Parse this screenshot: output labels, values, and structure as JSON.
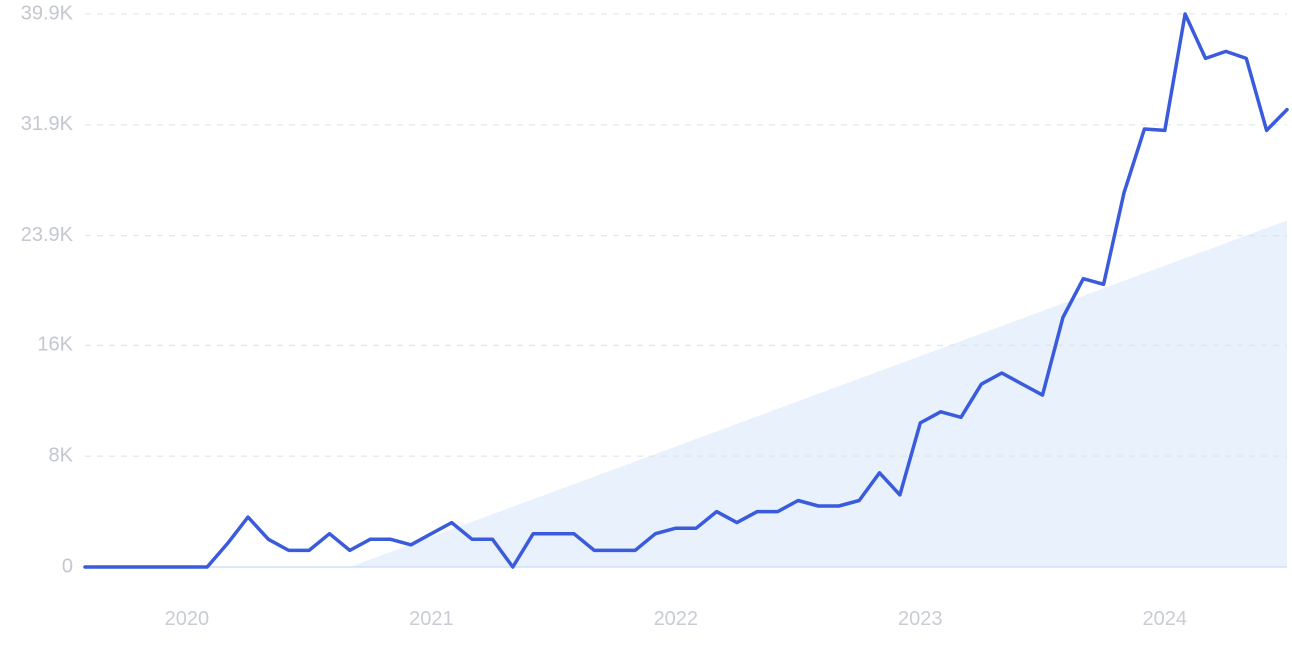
{
  "chart_data": {
    "type": "line",
    "title": "",
    "xlabel": "",
    "ylabel": "",
    "colors": {
      "line": "#3a5bdc",
      "grid": "#dde1e8",
      "baseline": "#cfe0f5",
      "trend_fill": "#e6f0fc",
      "tick_text": "#c4c7cf"
    },
    "grid": true,
    "legend": "none",
    "x_range": [
      "2019-08",
      "2024-07"
    ],
    "ylim": [
      0,
      39900
    ],
    "y_ticks": [
      {
        "value": 0,
        "label": "0"
      },
      {
        "value": 8000,
        "label": "8K"
      },
      {
        "value": 16000,
        "label": "16K"
      },
      {
        "value": 23900,
        "label": "23.9K"
      },
      {
        "value": 31900,
        "label": "31.9K"
      },
      {
        "value": 39900,
        "label": "39.9K"
      }
    ],
    "x_ticks": [
      {
        "date": "2020-01",
        "label": "2020"
      },
      {
        "date": "2021-01",
        "label": "2021"
      },
      {
        "date": "2022-01",
        "label": "2022"
      },
      {
        "date": "2023-01",
        "label": "2023"
      },
      {
        "date": "2024-01",
        "label": "2024"
      }
    ],
    "series": [
      {
        "x": [
          "2019-08",
          "2019-09",
          "2019-10",
          "2019-11",
          "2019-12",
          "2020-01",
          "2020-02",
          "2020-03",
          "2020-04",
          "2020-05",
          "2020-06",
          "2020-07",
          "2020-08",
          "2020-09",
          "2020-10",
          "2020-11",
          "2020-12",
          "2021-01",
          "2021-02",
          "2021-03",
          "2021-04",
          "2021-05",
          "2021-06",
          "2021-07",
          "2021-08",
          "2021-09",
          "2021-10",
          "2021-11",
          "2021-12",
          "2022-01",
          "2022-02",
          "2022-03",
          "2022-04",
          "2022-05",
          "2022-06",
          "2022-07",
          "2022-08",
          "2022-09",
          "2022-10",
          "2022-11",
          "2022-12",
          "2023-01",
          "2023-02",
          "2023-03",
          "2023-04",
          "2023-05",
          "2023-06",
          "2023-07",
          "2023-08",
          "2023-09",
          "2023-10",
          "2023-11",
          "2023-12",
          "2024-01",
          "2024-02",
          "2024-03",
          "2024-04",
          "2024-05",
          "2024-06",
          "2024-07"
        ],
        "values": [
          0,
          0,
          0,
          0,
          0,
          0,
          0,
          1700,
          3600,
          2000,
          1200,
          1200,
          2400,
          1200,
          2000,
          2000,
          1600,
          2400,
          3200,
          2000,
          2000,
          0,
          2400,
          2400,
          2400,
          1200,
          1200,
          1200,
          2400,
          2800,
          2800,
          4000,
          3200,
          4000,
          4000,
          4800,
          4400,
          4400,
          4800,
          6800,
          5200,
          10400,
          11200,
          10800,
          13200,
          14000,
          13200,
          12400,
          18000,
          20800,
          20400,
          27000,
          31600,
          31500,
          39900,
          36700,
          37200,
          36700,
          31500,
          33000
        ]
      }
    ],
    "trend": {
      "start": {
        "x": "2020-09",
        "y": 0
      },
      "end": {
        "x": "2024-07",
        "y": 25000
      }
    }
  }
}
